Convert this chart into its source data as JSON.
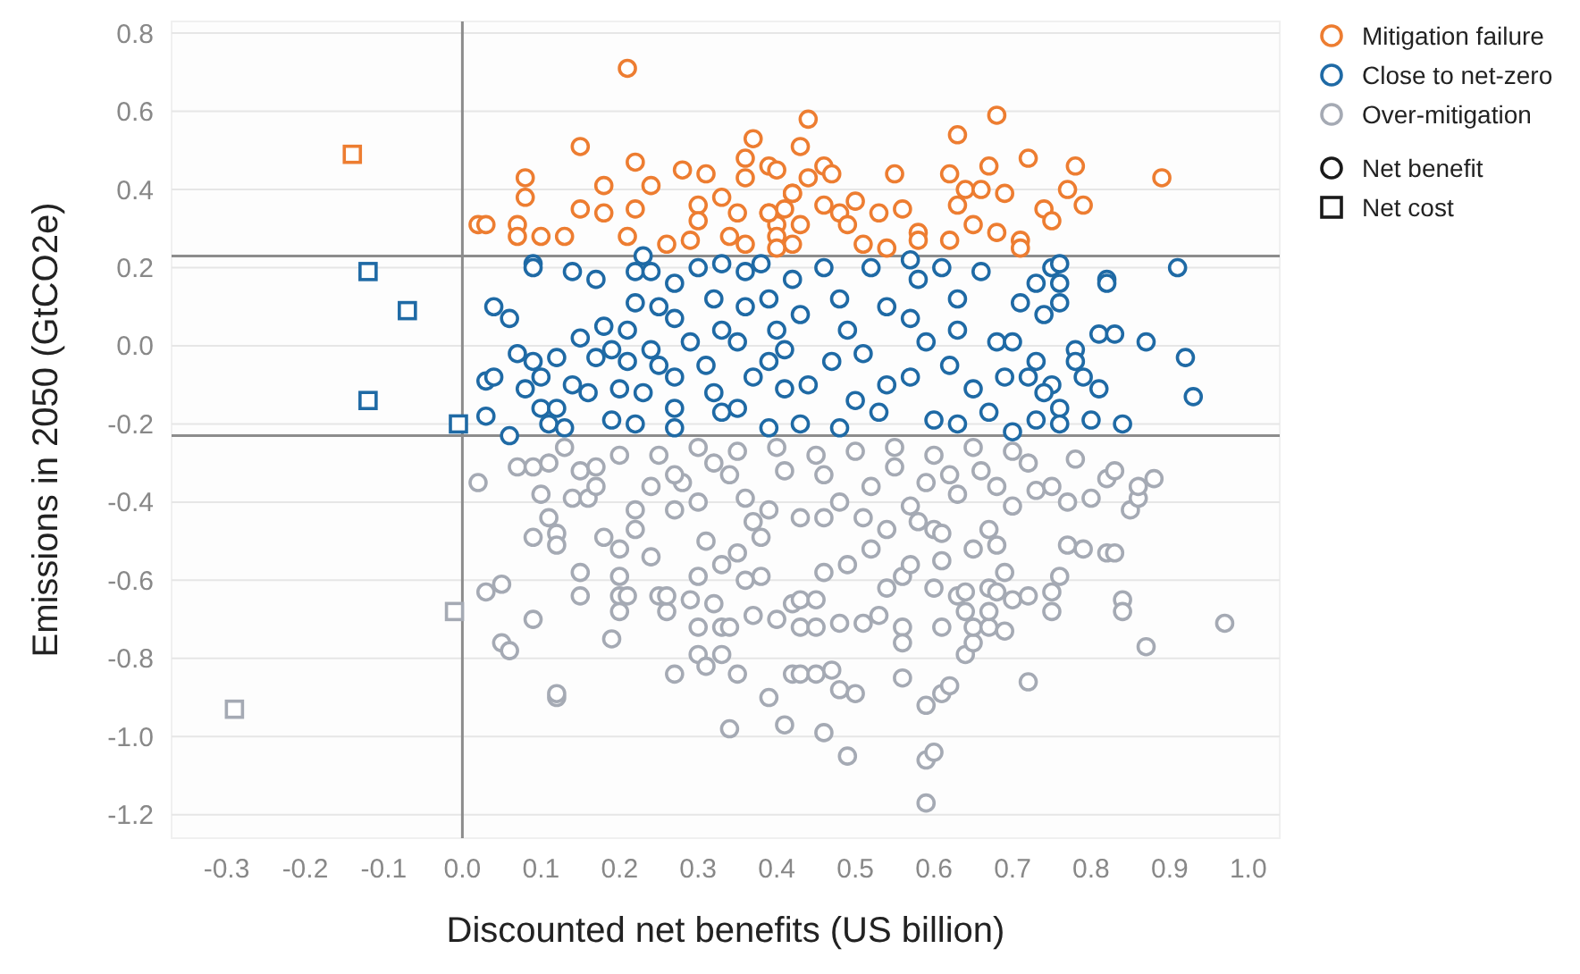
{
  "chart_data": {
    "type": "scatter",
    "xlabel": "Discounted net benefits (US billion)",
    "ylabel": "Emissions in 2050   (GtCO2e)",
    "xlim": [
      -0.37,
      1.04
    ],
    "xticks": [
      {
        "value": -0.3,
        "label": "-0.3"
      },
      {
        "value": -0.2,
        "label": "-0.2"
      },
      {
        "value": -0.1,
        "label": "-0.1"
      },
      {
        "value": 0,
        "label": "0.0"
      },
      {
        "value": 0.1,
        "label": "0.1"
      },
      {
        "value": 0.2,
        "label": "0.2"
      },
      {
        "value": 0.3,
        "label": "0.3"
      },
      {
        "value": 0.4,
        "label": "0.4"
      },
      {
        "value": 0.5,
        "label": "0.5"
      },
      {
        "value": 0.6,
        "label": "0.6"
      },
      {
        "value": 0.7,
        "label": "0.7"
      },
      {
        "value": 0.8,
        "label": "0.8"
      },
      {
        "value": 0.9,
        "label": "0.9"
      },
      {
        "value": 1,
        "label": "1.0"
      }
    ],
    "ylim": [
      -1.26,
      0.83
    ],
    "yticks": [
      {
        "value": -1.2,
        "label": "-1.2"
      },
      {
        "value": -1,
        "label": "-1.0"
      },
      {
        "value": -0.8,
        "label": "-0.8"
      },
      {
        "value": -0.6,
        "label": "-0.6"
      },
      {
        "value": -0.4,
        "label": "-0.4"
      },
      {
        "value": -0.2,
        "label": "-0.2"
      },
      {
        "value": 0,
        "label": "0.0"
      },
      {
        "value": 0.2,
        "label": "0.2"
      },
      {
        "value": 0.4,
        "label": "0.4"
      },
      {
        "value": 0.6,
        "label": "0.6"
      },
      {
        "value": 0.8,
        "label": "0.8"
      }
    ],
    "grid": "y",
    "legend": "top right",
    "ref_lines": [
      {
        "axis": "y",
        "value": 0.23,
        "color": "#8c8c8c"
      },
      {
        "axis": "y",
        "value": -0.23,
        "color": "#8c8c8c"
      },
      {
        "axis": "x",
        "value": 0,
        "color": "#8c8c8c"
      }
    ],
    "series": [
      {
        "name": "Mitigation failure",
        "color": "#ed7d31",
        "marker": "circle",
        "x": [
          0.21,
          0.15,
          0.08,
          0.08,
          0.22,
          0.24,
          0.18,
          0.15,
          0.18,
          0.22,
          0.28,
          0.31,
          0.37,
          0.36,
          0.36,
          0.39,
          0.02,
          0.03,
          0.07,
          0.07,
          0.1,
          0.13,
          0.21,
          0.26,
          0.29,
          0.3,
          0.3,
          0.33,
          0.35,
          0.34,
          0.36,
          0.39,
          0.4,
          0.4,
          0.42,
          0.43,
          0.44,
          0.46,
          0.4,
          0.44,
          0.47,
          0.42,
          0.46,
          0.5,
          0.48,
          0.53,
          0.56,
          0.55,
          0.43,
          0.49,
          0.51,
          0.54,
          0.58,
          0.58,
          0.63,
          0.68,
          0.67,
          0.62,
          0.64,
          0.66,
          0.69,
          0.72,
          0.78,
          0.77,
          0.79,
          0.74,
          0.75,
          0.63,
          0.65,
          0.68,
          0.71,
          0.71,
          0.62,
          0.89,
          0.41,
          0.39,
          0.42,
          0.4
        ],
        "values": [
          0.71,
          0.51,
          0.43,
          0.38,
          0.47,
          0.41,
          0.41,
          0.35,
          0.34,
          0.35,
          0.45,
          0.44,
          0.53,
          0.48,
          0.43,
          0.46,
          0.31,
          0.31,
          0.31,
          0.28,
          0.28,
          0.28,
          0.28,
          0.26,
          0.27,
          0.36,
          0.32,
          0.38,
          0.34,
          0.28,
          0.26,
          0.34,
          0.31,
          0.28,
          0.39,
          0.51,
          0.58,
          0.46,
          0.45,
          0.43,
          0.44,
          0.39,
          0.36,
          0.37,
          0.34,
          0.34,
          0.35,
          0.44,
          0.31,
          0.31,
          0.26,
          0.25,
          0.29,
          0.27,
          0.54,
          0.59,
          0.46,
          0.44,
          0.4,
          0.4,
          0.39,
          0.48,
          0.46,
          0.4,
          0.36,
          0.35,
          0.32,
          0.36,
          0.31,
          0.29,
          0.27,
          0.25,
          0.27,
          0.43,
          0.35,
          0.34,
          0.26,
          0.25
        ]
      },
      {
        "name": "Close to net-zero",
        "color": "#1f6aa5",
        "marker": "circle",
        "x": [
          0.09,
          0.09,
          0.14,
          0.17,
          0.04,
          0.06,
          0.15,
          0.07,
          0.09,
          0.12,
          0.17,
          0.03,
          0.04,
          0.08,
          0.1,
          0.1,
          0.12,
          0.14,
          0.16,
          0.03,
          0.06,
          0.11,
          0.13,
          0.18,
          0.19,
          0.21,
          0.21,
          0.2,
          0.19,
          0.23,
          0.22,
          0.24,
          0.22,
          0.25,
          0.24,
          0.25,
          0.23,
          0.22,
          0.27,
          0.3,
          0.27,
          0.29,
          0.27,
          0.27,
          0.27,
          0.32,
          0.33,
          0.31,
          0.32,
          0.33,
          0.33,
          0.36,
          0.36,
          0.35,
          0.37,
          0.35,
          0.38,
          0.39,
          0.4,
          0.39,
          0.41,
          0.39,
          0.42,
          0.43,
          0.41,
          0.44,
          0.43,
          0.46,
          0.48,
          0.49,
          0.47,
          0.5,
          0.48,
          0.52,
          0.54,
          0.51,
          0.54,
          0.53,
          0.57,
          0.58,
          0.57,
          0.59,
          0.57,
          0.6,
          0.61,
          0.63,
          0.63,
          0.62,
          0.65,
          0.63,
          0.66,
          0.68,
          0.69,
          0.67,
          0.7,
          0.71,
          0.73,
          0.74,
          0.75,
          0.76,
          0.76,
          0.76,
          0.73,
          0.72,
          0.75,
          0.74,
          0.76,
          0.76,
          0.78,
          0.78,
          0.79,
          0.81,
          0.8,
          0.84,
          0.81,
          0.83,
          0.87,
          0.82,
          0.82,
          0.91,
          0.92,
          0.93,
          0.73,
          0.7
        ],
        "values": [
          0.21,
          0.2,
          0.19,
          0.17,
          0.1,
          0.07,
          0.02,
          -0.02,
          -0.04,
          -0.03,
          -0.03,
          -0.09,
          -0.08,
          -0.11,
          -0.08,
          -0.16,
          -0.16,
          -0.1,
          -0.12,
          -0.18,
          -0.23,
          -0.2,
          -0.21,
          0.05,
          -0.01,
          0.04,
          -0.04,
          -0.11,
          -0.19,
          0.23,
          0.19,
          0.19,
          0.11,
          0.1,
          -0.01,
          -0.05,
          -0.12,
          -0.2,
          0.16,
          0.2,
          0.07,
          0.01,
          -0.08,
          -0.16,
          -0.21,
          0.12,
          0.04,
          -0.05,
          -0.12,
          -0.17,
          0.21,
          0.19,
          0.1,
          0.01,
          -0.08,
          -0.16,
          0.21,
          0.12,
          0.04,
          -0.04,
          -0.11,
          -0.21,
          0.17,
          0.08,
          -0.01,
          -0.1,
          -0.2,
          0.2,
          0.12,
          0.04,
          -0.04,
          -0.14,
          -0.21,
          0.2,
          0.1,
          -0.02,
          -0.1,
          -0.17,
          0.22,
          0.17,
          0.07,
          0.01,
          -0.08,
          -0.19,
          0.2,
          0.12,
          0.04,
          -0.05,
          -0.11,
          -0.2,
          0.19,
          0.01,
          -0.08,
          -0.17,
          0.01,
          0.11,
          0.16,
          0.08,
          0.2,
          0.21,
          0.16,
          0.11,
          -0.04,
          -0.08,
          -0.1,
          -0.12,
          -0.16,
          -0.2,
          -0.01,
          -0.04,
          -0.08,
          -0.11,
          -0.19,
          -0.2,
          0.03,
          0.03,
          0.01,
          0.17,
          0.16,
          0.2,
          -0.03,
          -0.13,
          -0.19,
          -0.22
        ]
      },
      {
        "name": "Over-mitigation",
        "color": "#a5aab4",
        "marker": "circle",
        "x": [
          0.02,
          0.07,
          0.09,
          0.11,
          0.1,
          0.14,
          0.16,
          0.15,
          0.17,
          0.11,
          0.12,
          0.09,
          0.12,
          0.18,
          0.2,
          0.22,
          0.22,
          0.24,
          0.15,
          0.15,
          0.2,
          0.2,
          0.21,
          0.2,
          0.03,
          0.05,
          0.09,
          0.05,
          0.06,
          0.19,
          0.12,
          0.12,
          0.25,
          0.26,
          0.26,
          0.27,
          0.29,
          0.3,
          0.3,
          0.31,
          0.33,
          0.33,
          0.34,
          0.35,
          0.34,
          0.32,
          0.3,
          0.31,
          0.33,
          0.36,
          0.38,
          0.37,
          0.39,
          0.41,
          0.24,
          0.27,
          0.28,
          0.3,
          0.34,
          0.36,
          0.39,
          0.38,
          0.35,
          0.41,
          0.42,
          0.42,
          0.17,
          0.43,
          0.45,
          0.46,
          0.49,
          0.47,
          0.48,
          0.5,
          0.43,
          0.45,
          0.48,
          0.51,
          0.53,
          0.56,
          0.56,
          0.56,
          0.59,
          0.61,
          0.62,
          0.59,
          0.6,
          0.59,
          0.72,
          0.64,
          0.65,
          0.65,
          0.67,
          0.69,
          0.61,
          0.64,
          0.63,
          0.64,
          0.67,
          0.67,
          0.68,
          0.7,
          0.72,
          0.75,
          0.75,
          0.76,
          0.69,
          0.6,
          0.61,
          0.54,
          0.56,
          0.57,
          0.84,
          0.84,
          0.87,
          0.97,
          0.77,
          0.79,
          0.82,
          0.83,
          0.65,
          0.68,
          0.67,
          0.7,
          0.73,
          0.75,
          0.77,
          0.8,
          0.82,
          0.83,
          0.85,
          0.86,
          0.88,
          0.86,
          0.6,
          0.61,
          0.46,
          0.49,
          0.43,
          0.45,
          0.4,
          0.43,
          0.46,
          0.51,
          0.54,
          0.52,
          0.57,
          0.59,
          0.63,
          0.66,
          0.72,
          0.78,
          0.3,
          0.35,
          0.4,
          0.45,
          0.5,
          0.55,
          0.6,
          0.65,
          0.7,
          0.27,
          0.32,
          0.46,
          0.52,
          0.48,
          0.55,
          0.62,
          0.68,
          0.37,
          0.58,
          0.2,
          0.25,
          0.13
        ],
        "values": [
          -0.35,
          -0.31,
          -0.31,
          -0.3,
          -0.38,
          -0.39,
          -0.39,
          -0.32,
          -0.31,
          -0.44,
          -0.48,
          -0.49,
          -0.51,
          -0.49,
          -0.52,
          -0.47,
          -0.42,
          -0.54,
          -0.58,
          -0.64,
          -0.59,
          -0.64,
          -0.64,
          -0.68,
          -0.63,
          -0.61,
          -0.7,
          -0.76,
          -0.78,
          -0.75,
          -0.9,
          -0.89,
          -0.64,
          -0.68,
          -0.64,
          -0.84,
          -0.65,
          -0.72,
          -0.79,
          -0.82,
          -0.79,
          -0.72,
          -0.72,
          -0.84,
          -0.98,
          -0.66,
          -0.59,
          -0.5,
          -0.56,
          -0.6,
          -0.59,
          -0.69,
          -0.9,
          -0.97,
          -0.36,
          -0.42,
          -0.35,
          -0.4,
          -0.33,
          -0.39,
          -0.42,
          -0.49,
          -0.53,
          -0.32,
          -0.66,
          -0.84,
          -0.36,
          -0.84,
          -0.84,
          -0.99,
          -1.05,
          -0.83,
          -0.88,
          -0.89,
          -0.72,
          -0.72,
          -0.71,
          -0.71,
          -0.69,
          -0.72,
          -0.76,
          -0.85,
          -0.92,
          -0.89,
          -0.87,
          -1.06,
          -1.04,
          -1.17,
          -0.86,
          -0.79,
          -0.76,
          -0.72,
          -0.72,
          -0.73,
          -0.72,
          -0.68,
          -0.64,
          -0.63,
          -0.68,
          -0.62,
          -0.63,
          -0.65,
          -0.64,
          -0.68,
          -0.63,
          -0.59,
          -0.58,
          -0.62,
          -0.55,
          -0.62,
          -0.59,
          -0.56,
          -0.65,
          -0.68,
          -0.77,
          -0.71,
          -0.51,
          -0.52,
          -0.53,
          -0.53,
          -0.52,
          -0.51,
          -0.47,
          -0.41,
          -0.37,
          -0.36,
          -0.4,
          -0.39,
          -0.34,
          -0.32,
          -0.42,
          -0.39,
          -0.34,
          -0.36,
          -0.47,
          -0.48,
          -0.58,
          -0.56,
          -0.65,
          -0.65,
          -0.7,
          -0.44,
          -0.44,
          -0.44,
          -0.47,
          -0.52,
          -0.41,
          -0.35,
          -0.38,
          -0.32,
          -0.3,
          -0.29,
          -0.26,
          -0.27,
          -0.26,
          -0.28,
          -0.27,
          -0.26,
          -0.28,
          -0.26,
          -0.27,
          -0.33,
          -0.3,
          -0.33,
          -0.36,
          -0.4,
          -0.31,
          -0.33,
          -0.36,
          -0.45,
          -0.45,
          -0.28,
          -0.28,
          -0.26
        ]
      },
      {
        "name": "Net benefit",
        "color": "#1a1a1a",
        "marker": "circle"
      },
      {
        "name": "Net cost",
        "color": "#1a1a1a",
        "marker": "square",
        "x": [
          -0.14,
          -0.12,
          -0.07,
          -0.12,
          -0.005,
          -0.01,
          -0.29
        ],
        "values": [
          0.49,
          0.19,
          0.09,
          -0.14,
          -0.2,
          -0.68,
          -0.93
        ],
        "colors": [
          "#ed7d31",
          "#1f6aa5",
          "#1f6aa5",
          "#1f6aa5",
          "#1f6aa5",
          "#a5aab4",
          "#a5aab4"
        ]
      }
    ]
  }
}
